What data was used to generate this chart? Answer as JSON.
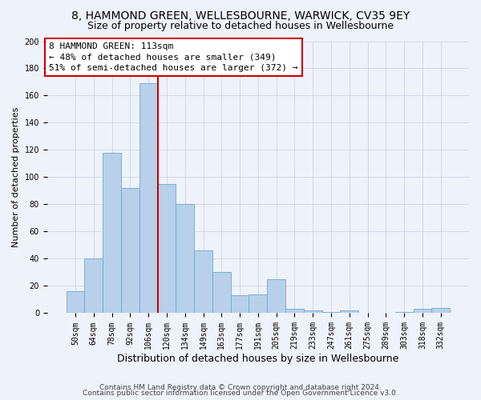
{
  "title": "8, HAMMOND GREEN, WELLESBOURNE, WARWICK, CV35 9EY",
  "subtitle": "Size of property relative to detached houses in Wellesbourne",
  "xlabel": "Distribution of detached houses by size in Wellesbourne",
  "ylabel": "Number of detached properties",
  "footer1": "Contains HM Land Registry data © Crown copyright and database right 2024.",
  "footer2": "Contains public sector information licensed under the Open Government Licence v3.0.",
  "annotation_line1": "8 HAMMOND GREEN: 113sqm",
  "annotation_line2": "← 48% of detached houses are smaller (349)",
  "annotation_line3": "51% of semi-detached houses are larger (372) →",
  "bar_categories": [
    "50sqm",
    "64sqm",
    "78sqm",
    "92sqm",
    "106sqm",
    "120sqm",
    "134sqm",
    "149sqm",
    "163sqm",
    "177sqm",
    "191sqm",
    "205sqm",
    "219sqm",
    "233sqm",
    "247sqm",
    "261sqm",
    "275sqm",
    "289sqm",
    "303sqm",
    "318sqm",
    "332sqm"
  ],
  "bar_values": [
    16,
    40,
    118,
    92,
    169,
    95,
    80,
    46,
    30,
    13,
    14,
    25,
    3,
    2,
    1,
    2,
    0,
    0,
    1,
    3,
    4
  ],
  "bar_color": "#b8d0ea",
  "bar_edge_color": "#6aaad4",
  "vline_color": "#cc0000",
  "vline_x_index": 4.5,
  "ylim": [
    0,
    200
  ],
  "yticks": [
    0,
    20,
    40,
    60,
    80,
    100,
    120,
    140,
    160,
    180,
    200
  ],
  "background_color": "#eef2fb",
  "annotation_box_facecolor": "#ffffff",
  "annotation_box_edge_color": "#cc0000",
  "title_fontsize": 10,
  "subtitle_fontsize": 9,
  "xlabel_fontsize": 9,
  "ylabel_fontsize": 8,
  "tick_fontsize": 7,
  "annotation_fontsize": 8,
  "footer_fontsize": 6.5
}
